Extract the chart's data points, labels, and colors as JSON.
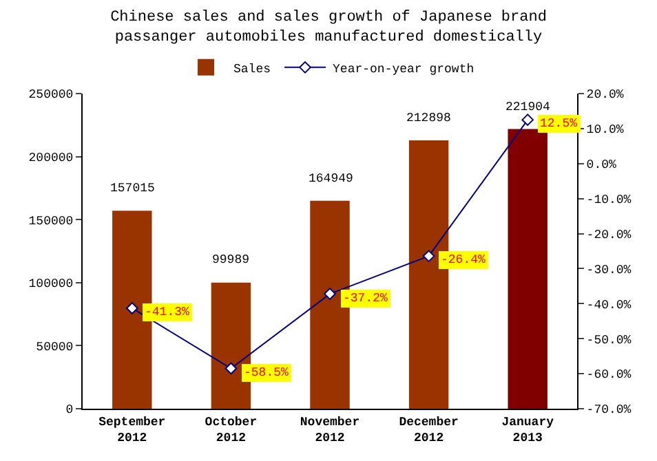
{
  "chart_data": {
    "type": "bar",
    "title": "Chinese sales and sales growth of Japanese brand passanger automobiles manufactured domestically",
    "categories": [
      "September 2012",
      "October 2012",
      "November 2012",
      "December 2012",
      "January 2013"
    ],
    "series": [
      {
        "name": "Sales",
        "color": "#993300",
        "colors": [
          "#993300",
          "#993300",
          "#993300",
          "#993300",
          "#800000"
        ],
        "values": [
          157015,
          99989,
          164949,
          212898,
          221904
        ]
      },
      {
        "name": "Year-on-year growth",
        "type": "line",
        "axis": "y2",
        "color": "#000080",
        "marker": "diamond",
        "values": [
          -41.3,
          -58.5,
          -37.2,
          -26.4,
          12.5
        ],
        "value_labels": [
          "-41.3%",
          "-58.5%",
          "-37.2%",
          "-26.4%",
          "12.5%"
        ]
      }
    ],
    "data_labels": true,
    "ylim": [
      0,
      250000
    ],
    "yticks": [
      0,
      50000,
      100000,
      150000,
      200000,
      250000
    ],
    "y2lim": [
      -70,
      20
    ],
    "y2ticks": [
      {
        "value": -70,
        "label": "-70.0%"
      },
      {
        "value": -60,
        "label": "-60.0%"
      },
      {
        "value": -50,
        "label": "-50.0%"
      },
      {
        "value": -40,
        "label": "-40.0%"
      },
      {
        "value": -30,
        "label": "-30.0%"
      },
      {
        "value": -20,
        "label": "-20.0%"
      },
      {
        "value": -10,
        "label": "-10.0%"
      },
      {
        "value": 0,
        "label": "0.0%"
      },
      {
        "value": 10,
        "label": "10.0%"
      },
      {
        "value": 20,
        "label": "20.0%"
      }
    ],
    "grid": false,
    "legend": "top"
  }
}
